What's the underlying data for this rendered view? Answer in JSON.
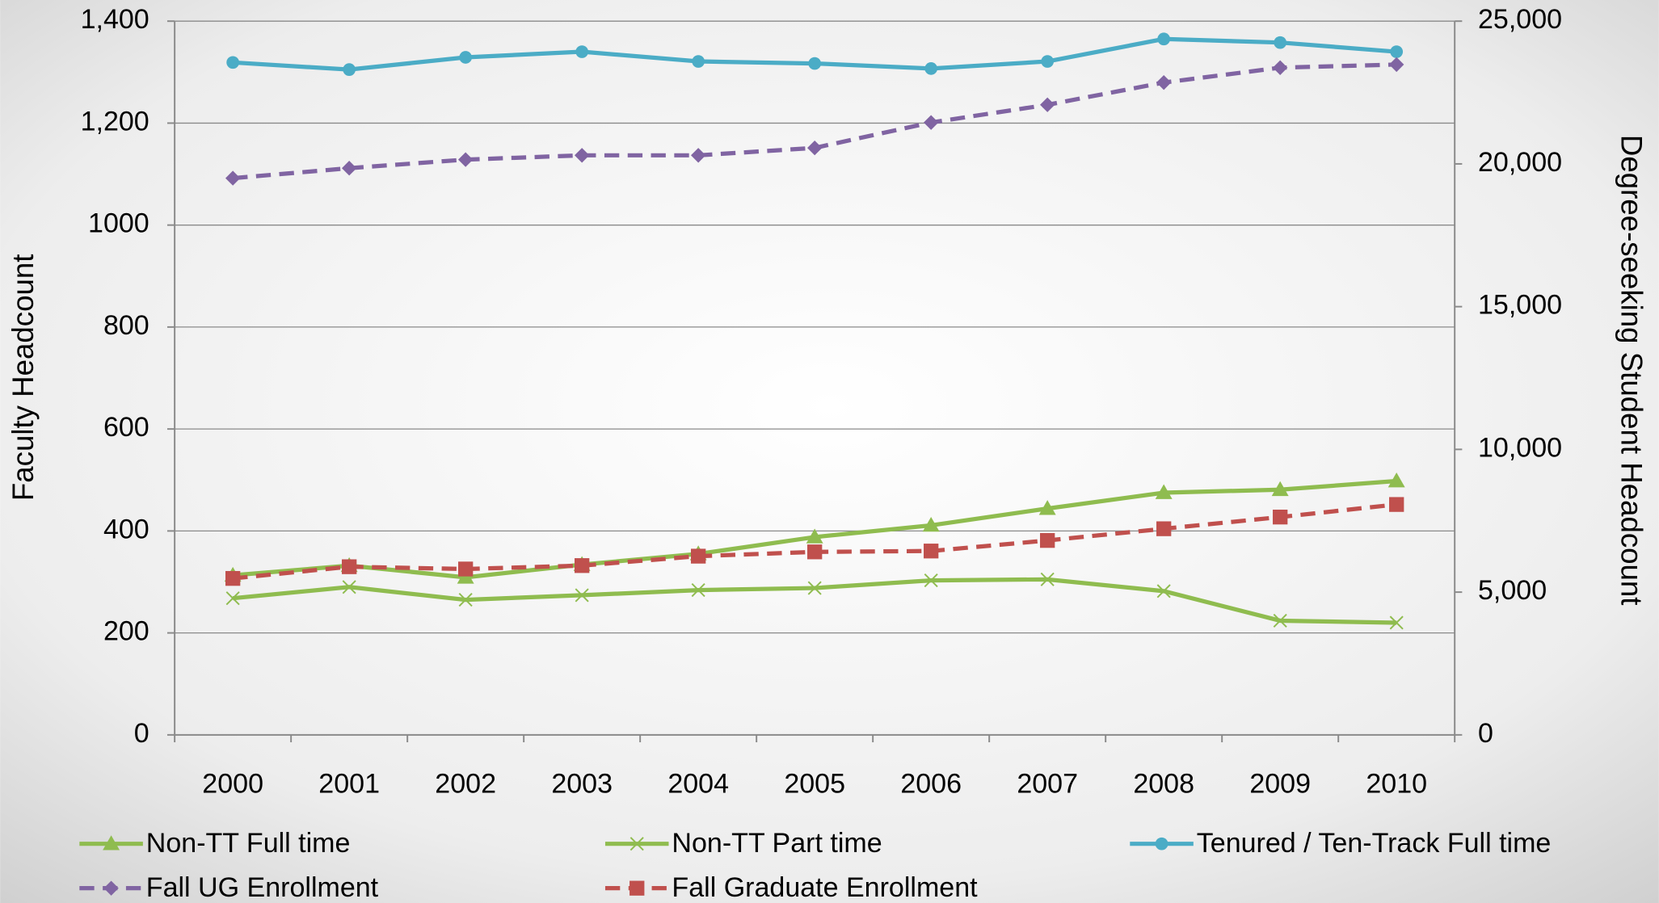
{
  "chart_data": {
    "type": "line",
    "categories": [
      "2000",
      "2001",
      "2002",
      "2003",
      "2004",
      "2005",
      "2006",
      "2007",
      "2008",
      "2009",
      "2010"
    ],
    "y_label": "Faculty Headcount",
    "y2_label": "Degree-seeking Student Headcount",
    "ylim": [
      0,
      1400
    ],
    "yticks": [
      0,
      200,
      400,
      600,
      800,
      1000,
      {
        "value": 1200,
        "label": "1,200"
      },
      {
        "value": 1400,
        "label": "1,400"
      }
    ],
    "y2lim": [
      0,
      25000
    ],
    "y2ticks": [
      0,
      {
        "value": 5000,
        "label": "5,000"
      },
      {
        "value": 10000,
        "label": "10,000"
      },
      {
        "value": 15000,
        "label": "15,000"
      },
      {
        "value": 20000,
        "label": "20,000"
      },
      {
        "value": 25000,
        "label": "25,000"
      }
    ],
    "grid": true,
    "legend": "bottom",
    "series": [
      {
        "name": "Non-TT Full time",
        "color": "#8fbc4f",
        "marker": "triangle",
        "dashed": false,
        "values": [
          313,
          332,
          309,
          334,
          355,
          388,
          411,
          444,
          475,
          481,
          498
        ]
      },
      {
        "name": "Non-TT Part time",
        "color": "#8fbc4f",
        "marker": "x",
        "dashed": false,
        "values": [
          268,
          290,
          265,
          274,
          284,
          288,
          303,
          305,
          282,
          224,
          220
        ]
      },
      {
        "name": "Tenured / Ten-Track Full time",
        "color": "#4bacc6",
        "marker": "circle",
        "dashed": false,
        "values": [
          1319,
          1305,
          1329,
          1340,
          1321,
          1317,
          1307,
          1321,
          1365,
          1358,
          1340
        ]
      },
      {
        "name": "Fall UG Enrollment",
        "color": "#8064a2",
        "marker": "diamond",
        "dashed": true,
        "axis": "y2",
        "values": [
          19500,
          19850,
          20150,
          20300,
          20300,
          20560,
          21450,
          22070,
          22850,
          23370,
          23480
        ]
      },
      {
        "name": "Fall Graduate Enrollment",
        "color": "#c0504d",
        "marker": "square",
        "dashed": true,
        "axis": "y2",
        "values": [
          5480,
          5890,
          5810,
          5930,
          6260,
          6410,
          6440,
          6810,
          7220,
          7630,
          8070
        ]
      }
    ]
  }
}
